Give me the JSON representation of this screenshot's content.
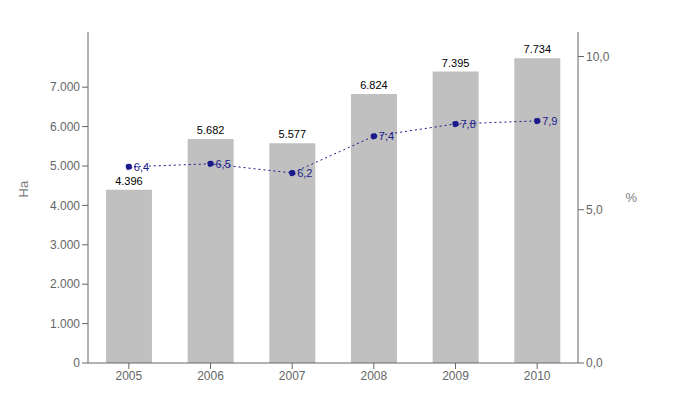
{
  "chart_data": {
    "type": "bar",
    "categories": [
      "2005",
      "2006",
      "2007",
      "2008",
      "2009",
      "2010"
    ],
    "ylabel": "Ha",
    "y2label": "%",
    "ylim": [
      0,
      8400
    ],
    "yticks": [
      0,
      {
        "value": 1000,
        "label": "1.000"
      },
      {
        "value": 2000,
        "label": "2.000"
      },
      {
        "value": 3000,
        "label": "3.000"
      },
      {
        "value": 4000,
        "label": "4.000"
      },
      {
        "value": 5000,
        "label": "5.000"
      },
      {
        "value": 6000,
        "label": "6.000"
      },
      {
        "value": 7000,
        "label": "7.000"
      }
    ],
    "y2lim": [
      0,
      10.8
    ],
    "y2ticks": [
      {
        "value": 0.0,
        "label": "0,0"
      },
      {
        "value": 5.0,
        "label": "5,0"
      },
      {
        "value": 10.0,
        "label": "10,0"
      }
    ],
    "grid": false,
    "series": [
      {
        "type": "bar",
        "color": "#c0c0c0",
        "values": [
          4396,
          5682,
          5577,
          6824,
          7395,
          7734
        ],
        "value_labels": [
          "4.396",
          "5.682",
          "5.577",
          "6.824",
          "7.395",
          "7.734"
        ],
        "data_labels": true
      },
      {
        "type": "line",
        "axis": "y2",
        "color": "#1a1a8c",
        "marker": "circle",
        "line_style": "dotted",
        "values": [
          6.4,
          6.5,
          6.2,
          7.4,
          7.8,
          7.9
        ],
        "value_labels": [
          "6,4",
          "6,5",
          "6,2",
          "7,4",
          "7,8",
          "7,9"
        ],
        "data_labels": true
      }
    ]
  }
}
